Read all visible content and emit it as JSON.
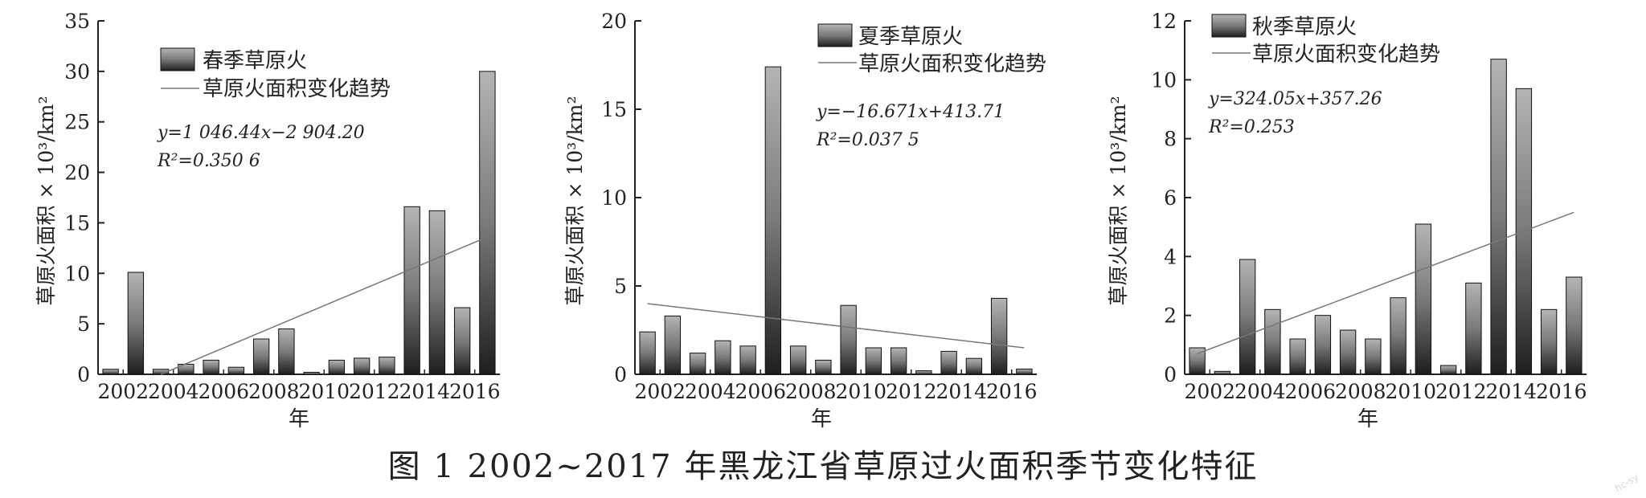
{
  "caption": "图 1 2002~2017 年黑龙江省草原过火面积季节变化特征",
  "watermark": "hc-sy",
  "colors": {
    "bar_dark": "#1e1e1e",
    "bar_light": "#b4b4b4",
    "trend": "#777777",
    "axis": "#222222"
  },
  "chart_data": [
    {
      "type": "bar",
      "legend_bar": "春季草原火",
      "legend_line": "草原火面积变化趋势",
      "equation": "y=1 046.44x−2 904.20",
      "r2": "R²=0.350 6",
      "ylabel": "草原火面积 × 10³/km²",
      "xlabel": "年",
      "ylim": [
        0,
        35
      ],
      "yticks": [
        "0",
        "5",
        "10",
        "15",
        "20",
        "25",
        "30",
        "35"
      ],
      "xtick_labels": [
        "2002",
        "2004",
        "2006",
        "2008",
        "2010",
        "2012",
        "2014",
        "2016"
      ],
      "years": [
        2002,
        2003,
        2004,
        2005,
        2006,
        2007,
        2008,
        2009,
        2010,
        2011,
        2012,
        2013,
        2014,
        2015,
        2016,
        2017
      ],
      "values": [
        0.5,
        10.1,
        0.5,
        1.0,
        1.4,
        0.7,
        3.5,
        4.5,
        0.2,
        1.4,
        1.6,
        1.7,
        16.6,
        16.2,
        6.6,
        30.0
      ],
      "trend": {
        "from_year": 2004,
        "to_year": 2017,
        "start": 0.0,
        "end": 13.6
      }
    },
    {
      "type": "bar",
      "legend_bar": "夏季草原火",
      "legend_line": "草原火面积变化趋势",
      "equation": "y=−16.671x+413.71",
      "r2": "R²=0.037 5",
      "ylabel": "草原火面积 × 10³/km²",
      "xlabel": "年",
      "ylim": [
        0,
        20
      ],
      "yticks": [
        "0",
        "5",
        "10",
        "15",
        "20"
      ],
      "xtick_labels": [
        "2002",
        "2004",
        "2006",
        "2008",
        "2010",
        "2012",
        "2014",
        "2016"
      ],
      "years": [
        2002,
        2003,
        2004,
        2005,
        2006,
        2007,
        2008,
        2009,
        2010,
        2011,
        2012,
        2013,
        2014,
        2015,
        2016,
        2017
      ],
      "values": [
        2.4,
        3.3,
        1.2,
        1.9,
        1.6,
        17.4,
        1.6,
        0.8,
        3.9,
        1.5,
        1.5,
        0.2,
        1.3,
        0.9,
        4.3,
        0.3
      ],
      "trend": {
        "from_year": 2002,
        "to_year": 2017,
        "start": 4.0,
        "end": 1.5
      }
    },
    {
      "type": "bar",
      "legend_bar": "秋季草原火",
      "legend_line": "草原火面积变化趋势",
      "equation": "y=324.05x+357.26",
      "r2": "R²=0.253",
      "ylabel": "草原火面积 × 10³/km²",
      "xlabel": "年",
      "ylim": [
        0,
        12
      ],
      "yticks": [
        "0",
        "2",
        "4",
        "6",
        "8",
        "10",
        "12"
      ],
      "xtick_labels": [
        "2002",
        "2004",
        "2006",
        "2008",
        "2010",
        "2012",
        "2014",
        "2016"
      ],
      "years": [
        2002,
        2003,
        2004,
        2005,
        2006,
        2007,
        2008,
        2009,
        2010,
        2011,
        2012,
        2013,
        2014,
        2015,
        2016,
        2017
      ],
      "values": [
        0.9,
        0.1,
        3.9,
        2.2,
        1.2,
        2.0,
        1.5,
        1.2,
        2.6,
        5.1,
        0.3,
        3.1,
        10.7,
        9.7,
        2.2,
        3.3
      ],
      "trend": {
        "from_year": 2002,
        "to_year": 2017,
        "start": 0.7,
        "end": 5.5
      }
    }
  ]
}
